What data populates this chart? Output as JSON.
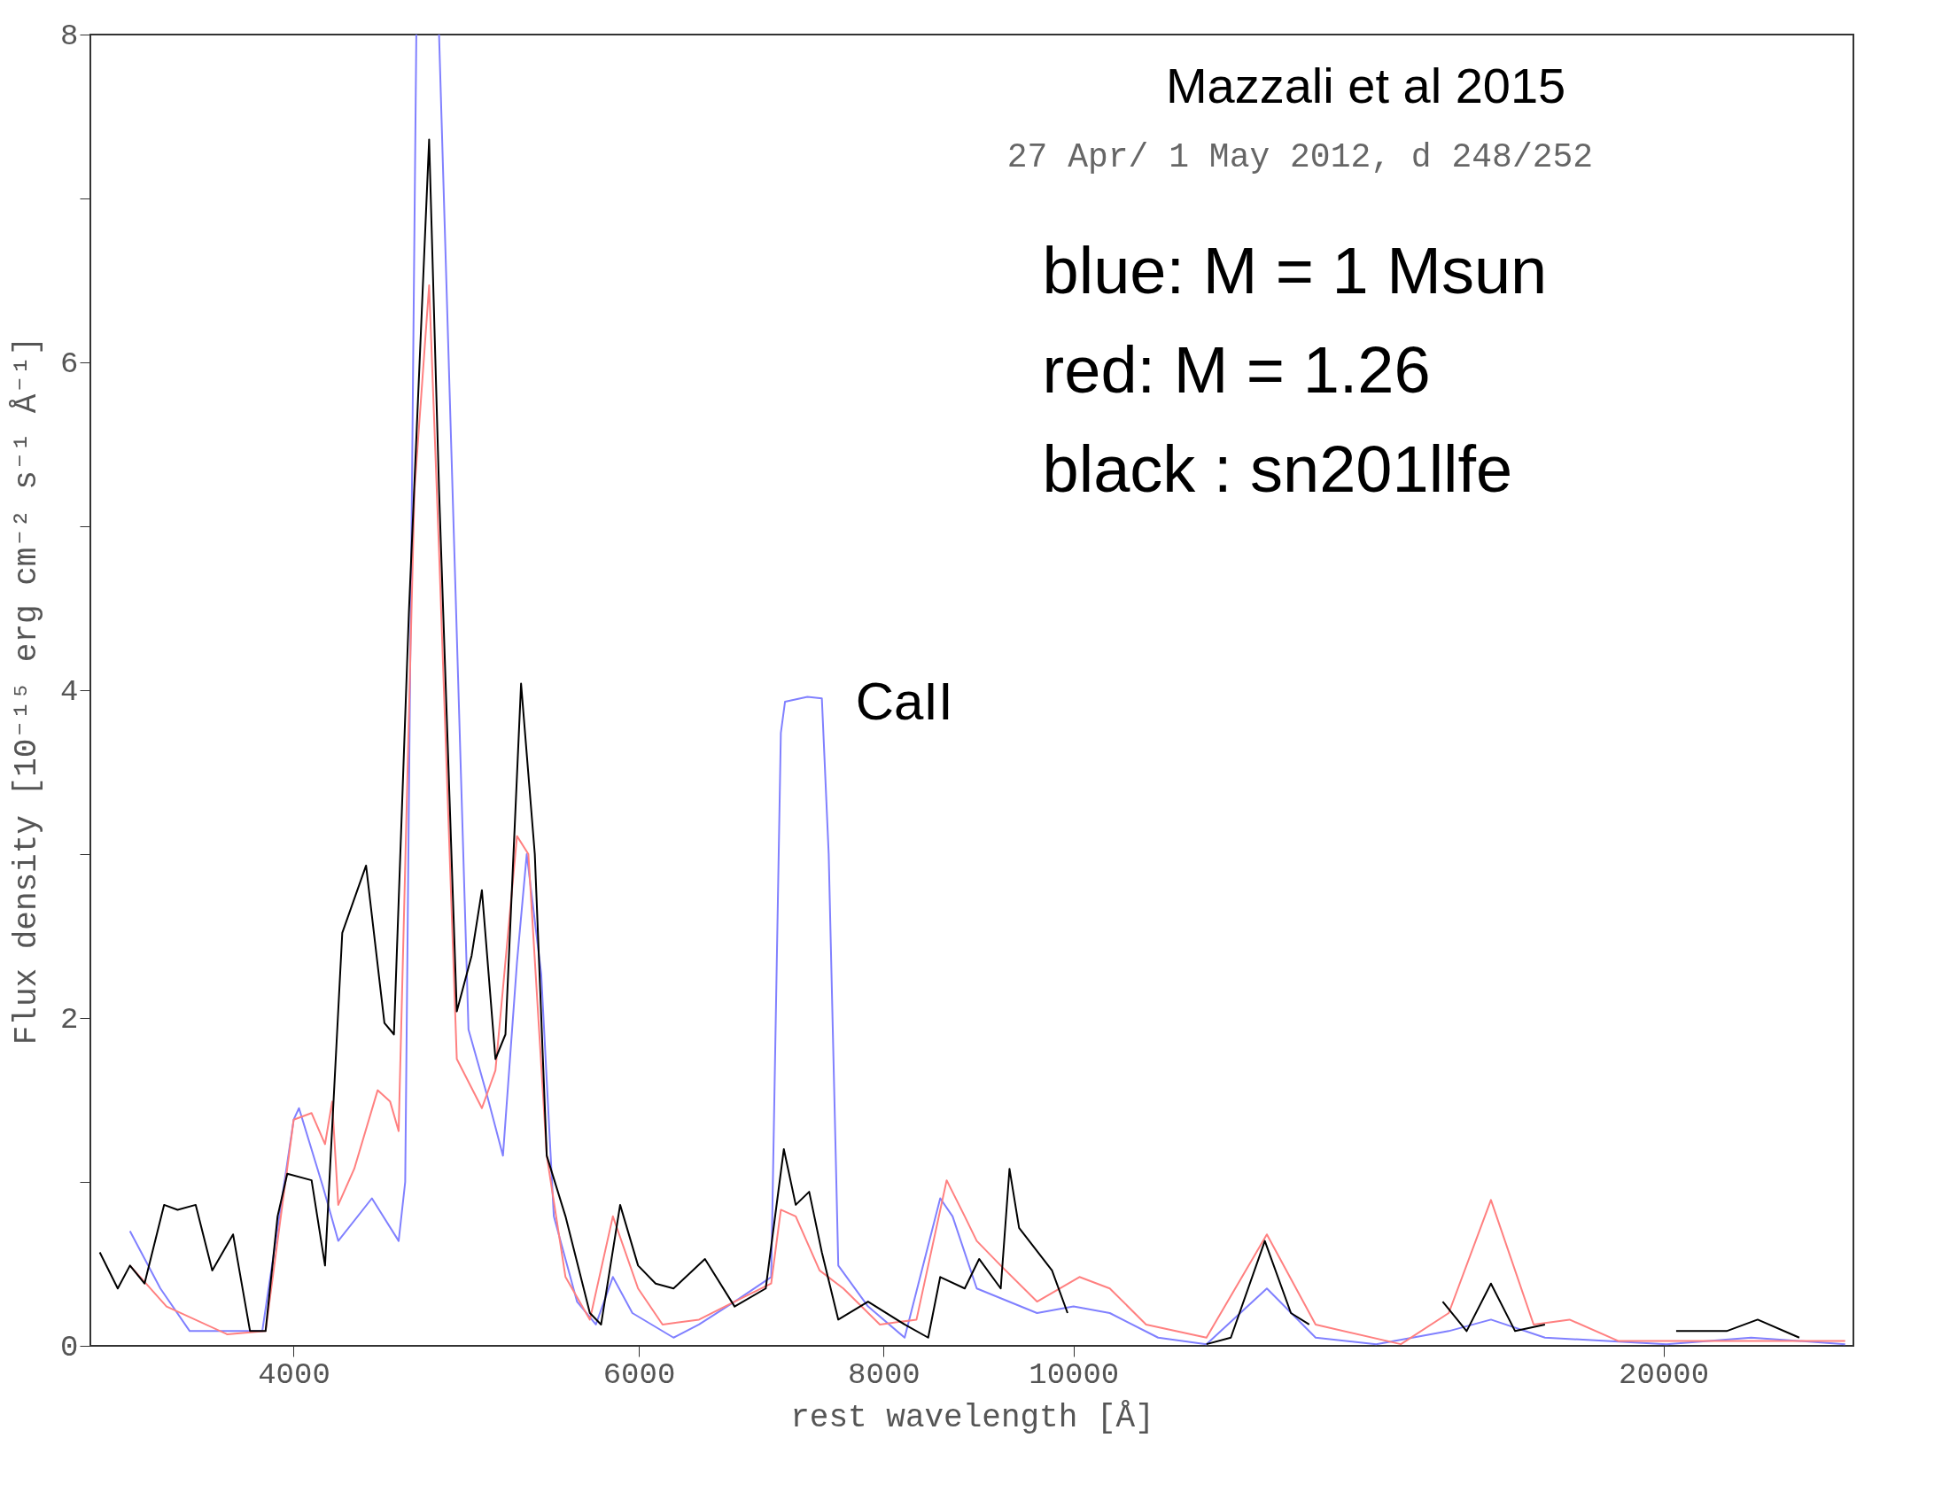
{
  "chart_data": {
    "type": "line",
    "xlabel": "rest wavelength [Å]",
    "ylabel": "Flux density [10⁻¹⁵ erg cm⁻² s⁻¹ Å⁻¹]",
    "log": "x",
    "grid": false,
    "line_style": "solid",
    "marker": "none",
    "xlim": [
      3150,
      25000
    ],
    "xticks": [
      4000,
      6000,
      8000,
      10000,
      20000
    ],
    "ylim": [
      0,
      8
    ],
    "yticks": [
      0,
      {
        "value": 1,
        "label": null
      },
      2,
      {
        "value": 3,
        "label": null
      },
      4,
      {
        "value": 5,
        "label": null
      },
      6,
      {
        "value": 7,
        "label": null
      },
      8
    ],
    "annotations": [
      "Mazzali et al 2015",
      "27 Apr/ 1 May 2012, d 248/252",
      "blue: M = 1 Msun",
      "red: M  = 1.26",
      "black : sn201llfe",
      "CaII"
    ],
    "series": [
      {
        "color": "#8080ff",
        "x": [
          3300,
          3420,
          3540,
          3855,
          4000,
          4025,
          4140,
          4215,
          4385,
          4525,
          4560,
          4620,
          4680,
          4745,
          4912,
          5020,
          5115,
          5200,
          5260,
          5350,
          5430,
          5580,
          5705,
          5820,
          5955,
          6250,
          6440,
          6715,
          7010,
          7090,
          7125,
          7315,
          7440,
          7500,
          7585,
          7855,
          8200,
          8550,
          8675,
          8925,
          9580,
          10000,
          10435,
          11045,
          11690,
          12550,
          13290,
          14270,
          15540,
          16330,
          17400,
          20070,
          22170,
          24760
        ],
        "values": [
          0.7,
          0.35,
          0.09,
          0.09,
          1.38,
          1.45,
          0.97,
          0.64,
          0.9,
          0.64,
          1.0,
          8,
          null,
          8,
          1.93,
          1.53,
          1.16,
          2.34,
          3.0,
          2.27,
          0.79,
          0.27,
          0.13,
          0.42,
          0.2,
          0.05,
          0.13,
          0.27,
          0.42,
          3.74,
          3.93,
          3.96,
          3.95,
          3.0,
          0.49,
          0.24,
          0.05,
          0.9,
          0.79,
          0.35,
          0.2,
          0.24,
          0.2,
          0.05,
          0.01,
          0.35,
          0.05,
          0.01,
          0.09,
          0.16,
          0.05,
          0.01,
          0.05,
          0.01
        ]
      },
      {
        "color": "#ff8080",
        "x": [
          3300,
          3445,
          3700,
          3870,
          4000,
          4085,
          4150,
          4185,
          4215,
          4295,
          4415,
          4480,
          4525,
          4610,
          4690,
          4745,
          4845,
          4990,
          5070,
          5200,
          5270,
          5385,
          5505,
          5665,
          5820,
          5995,
          6170,
          6440,
          6715,
          7010,
          7090,
          7215,
          7420,
          7630,
          7965,
          8315,
          8615,
          8800,
          8925,
          9180,
          9580,
          10070,
          10435,
          10890,
          11690,
          12550,
          13290,
          14690,
          15540,
          16330,
          17170,
          17910,
          18960,
          24760
        ],
        "values": [
          0.49,
          0.24,
          0.07,
          0.09,
          1.38,
          1.42,
          1.23,
          1.49,
          0.86,
          1.08,
          1.56,
          1.49,
          1.31,
          5.22,
          6.47,
          4.85,
          1.75,
          1.45,
          1.68,
          3.11,
          3.0,
          1.16,
          0.42,
          0.16,
          0.79,
          0.35,
          0.13,
          0.16,
          0.27,
          0.38,
          0.83,
          0.79,
          0.46,
          0.35,
          0.13,
          0.16,
          1.01,
          0.79,
          0.64,
          0.49,
          0.27,
          0.42,
          0.35,
          0.13,
          0.05,
          0.68,
          0.13,
          0.01,
          0.2,
          0.89,
          0.13,
          0.16,
          0.03,
          0.03
        ]
      },
      {
        "color": "#000000",
        "x": [
          3185,
          3253,
          3300,
          3357,
          3435,
          3490,
          3565,
          3635,
          3725,
          3800,
          3870,
          3925,
          3970,
          4085,
          4150,
          4235,
          4355,
          4450,
          4500,
          4580,
          4690,
          4745,
          4845,
          4930,
          4990,
          5070,
          5130,
          5225,
          5310,
          5385,
          5505,
          5665,
          5740,
          5870,
          5995,
          6120,
          6250,
          6485,
          6715,
          6965,
          7115,
          7215,
          7330,
          7440,
          7585,
          7855,
          8200,
          8430,
          8550,
          8800,
          8950,
          9180,
          9275,
          9380,
          9750,
          9930,
          10500,
          11690,
          12030,
          12520,
          12910,
          13190,
          14200,
          15430,
          15870,
          16330,
          16800,
          17400,
          18500,
          20300,
          21540,
          22340,
          23460
        ],
        "values": [
          0.57,
          0.35,
          0.49,
          0.38,
          0.86,
          0.83,
          0.86,
          0.46,
          0.68,
          0.09,
          0.09,
          0.79,
          1.05,
          1.01,
          0.49,
          2.52,
          2.93,
          1.97,
          1.9,
          4.48,
          7.36,
          5.22,
          2.04,
          2.38,
          2.78,
          1.75,
          1.9,
          4.04,
          3.0,
          1.16,
          0.79,
          0.2,
          0.13,
          0.86,
          0.49,
          0.38,
          0.35,
          0.53,
          0.24,
          0.35,
          1.2,
          0.86,
          0.94,
          0.57,
          0.16,
          0.27,
          0.13,
          0.05,
          0.42,
          0.35,
          0.53,
          0.35,
          1.08,
          0.72,
          0.46,
          0.2,
          null,
          0.01,
          0.05,
          0.64,
          0.2,
          0.13,
          null,
          0.27,
          0.09,
          0.38,
          0.09,
          0.13,
          null,
          0.09,
          0.09,
          0.16,
          0.05
        ]
      }
    ]
  }
}
